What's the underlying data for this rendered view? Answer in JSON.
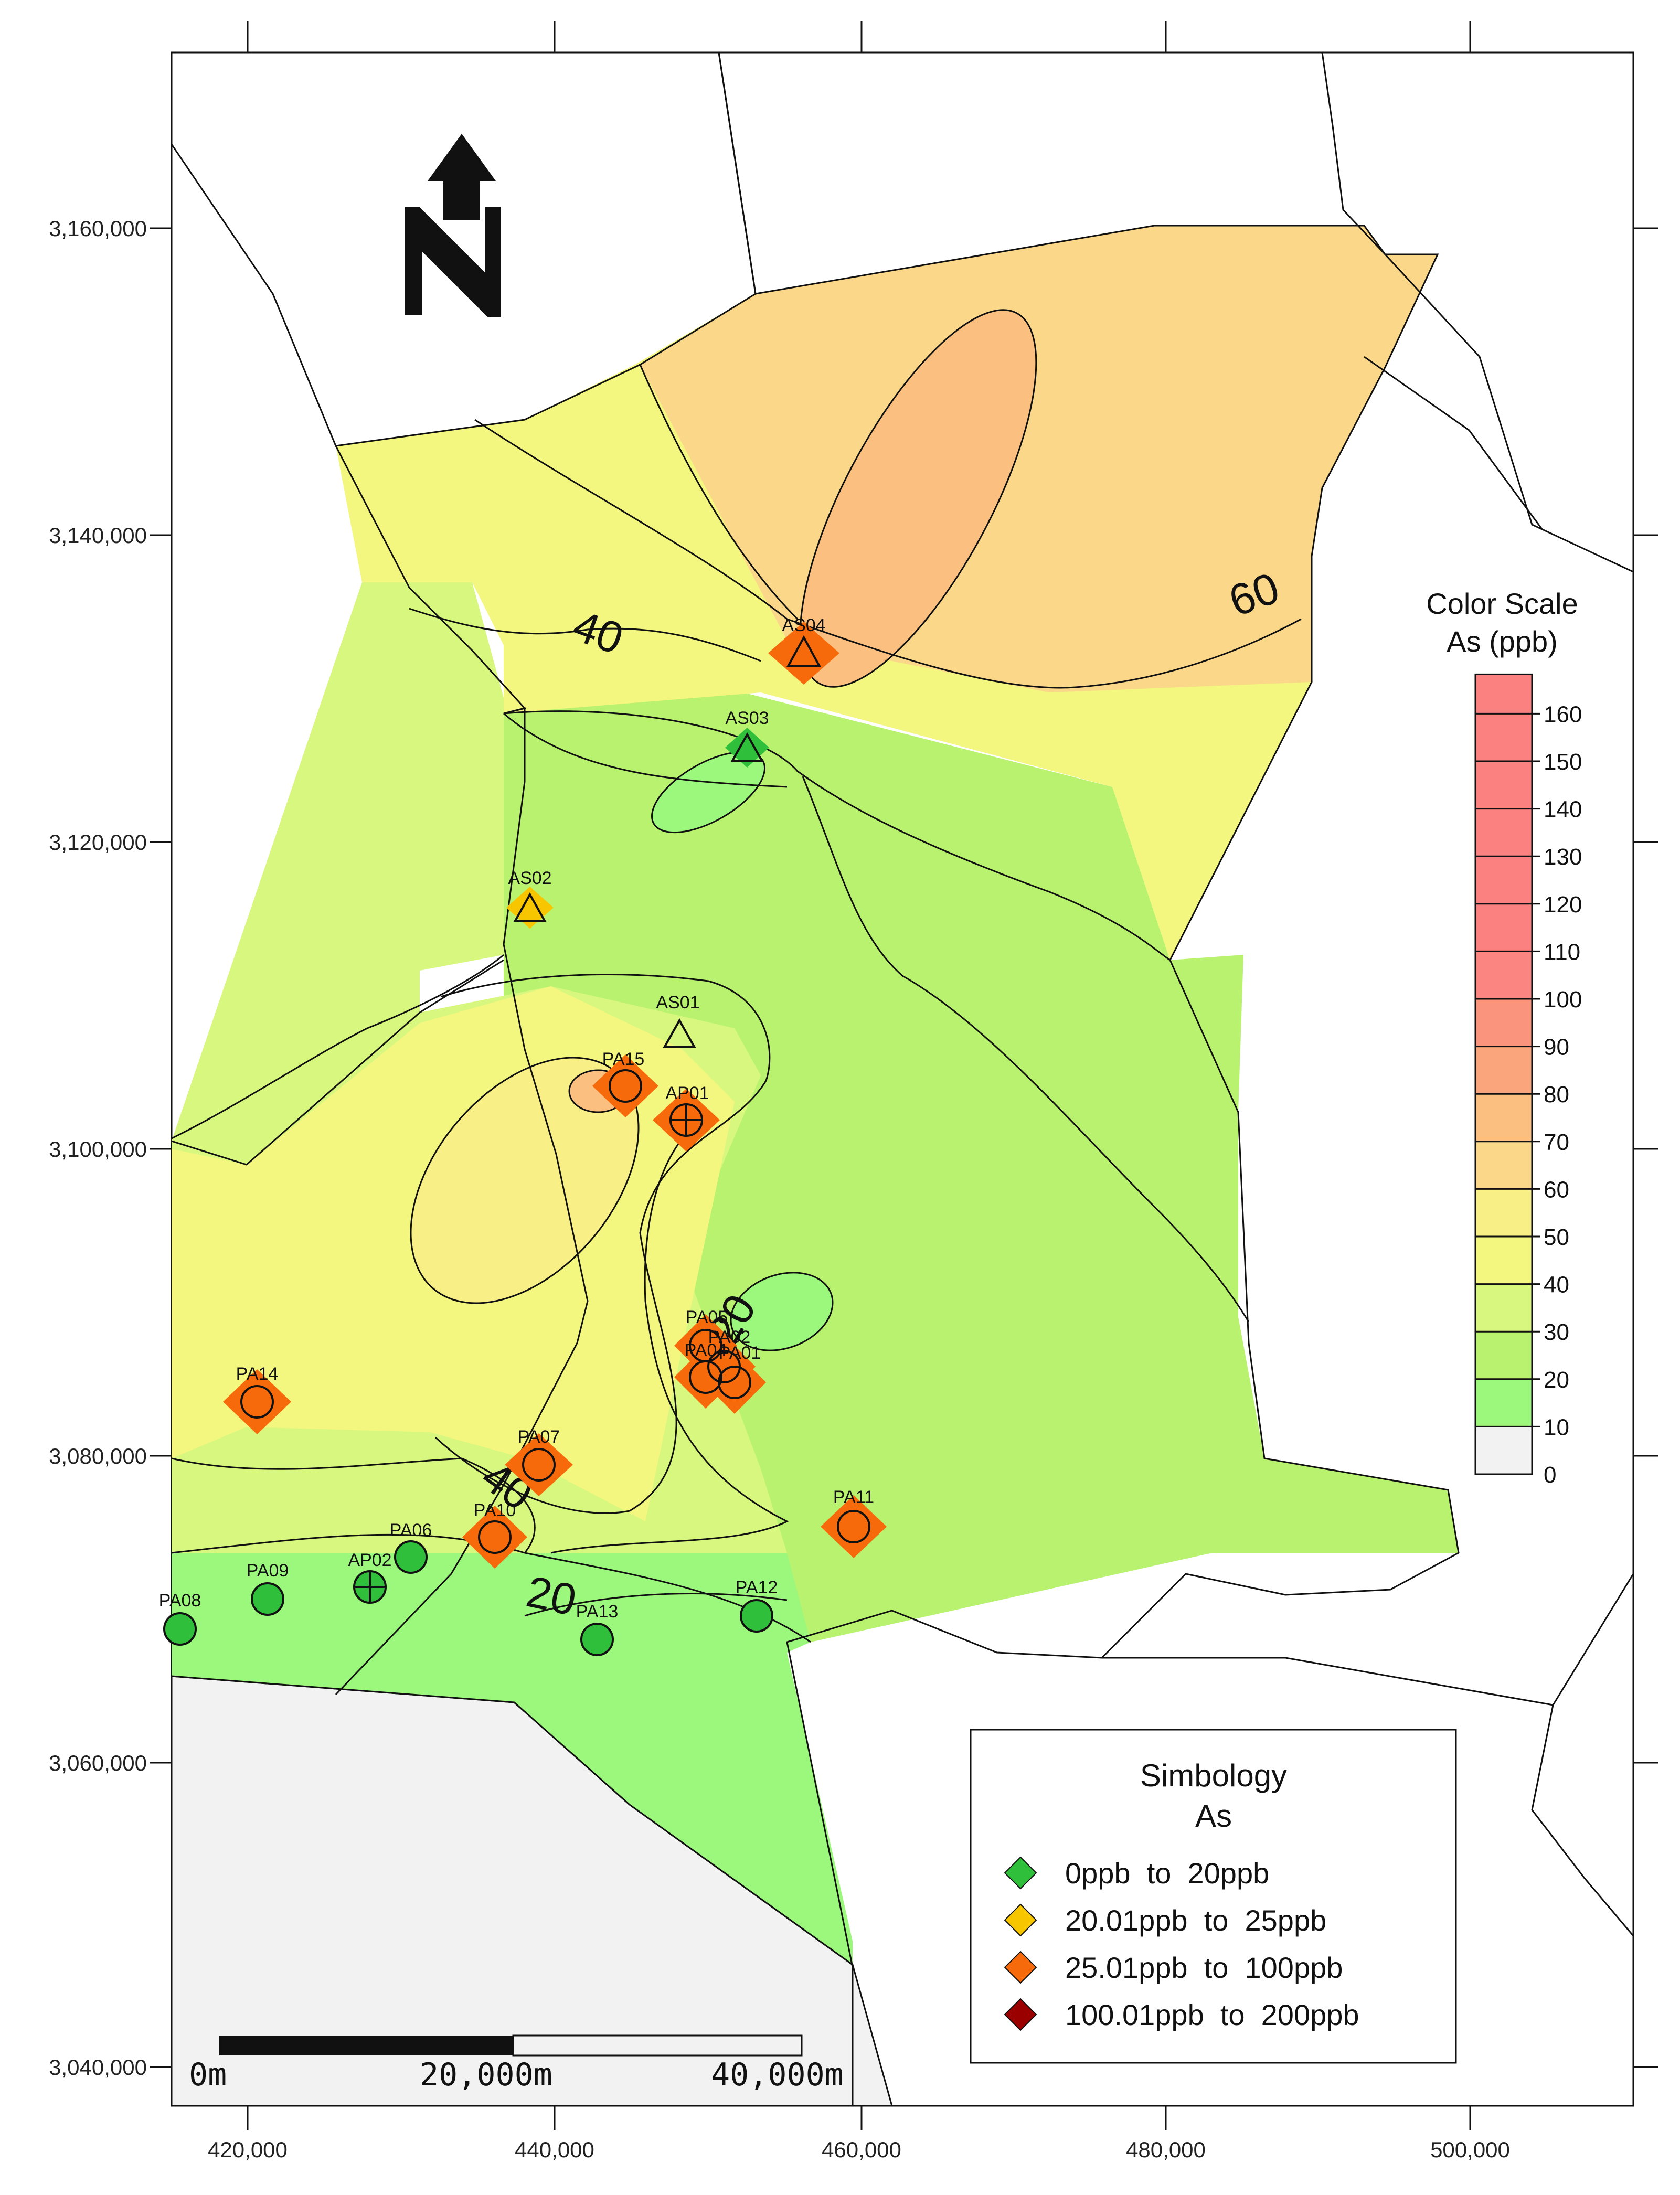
{
  "map": {
    "x_ticks": [
      "420,000",
      "440,000",
      "460,000",
      "480,000",
      "500,000"
    ],
    "y_ticks": [
      "3,160,000",
      "3,140,000",
      "3,120,000",
      "3,100,000",
      "3,080,000",
      "3,060,000",
      "3,040,000"
    ],
    "contour_labels": [
      "40",
      "60",
      "20",
      "40",
      "20"
    ],
    "stations": [
      "AS04",
      "AS03",
      "AS02",
      "AS01",
      "PA15",
      "AP01",
      "PA05",
      "PA02",
      "PA04",
      "PA01",
      "PA14",
      "PA07",
      "PA10",
      "PA11",
      "PA06",
      "AP02",
      "PA09",
      "PA08",
      "PA13",
      "PA12"
    ]
  },
  "scale_bar": {
    "labels": [
      "0m",
      "20,000m",
      "40,000m"
    ]
  },
  "color_scale": {
    "title_line1": "Color Scale",
    "title_line2": "As (ppb)",
    "levels": [
      "0",
      "10",
      "20",
      "30",
      "40",
      "50",
      "60",
      "70",
      "80",
      "90",
      "100",
      "110",
      "120",
      "130",
      "140",
      "150",
      "160"
    ],
    "colors": [
      "#f2f2f2",
      "#9cf87c",
      "#b9f26e",
      "#d8f77e",
      "#f3f77f",
      "#f8ef86",
      "#fbd78a",
      "#fbc07f",
      "#fba57d",
      "#fb947d",
      "#fb8580",
      "#fb8080",
      "#fb8080",
      "#fb8080",
      "#fb8080",
      "#fb8080",
      "#fb8080"
    ]
  },
  "legend": {
    "title_line1": "Simbology",
    "title_line2": "As",
    "items": [
      {
        "label": "0ppb  to  20ppb",
        "color": "#2fbf3a"
      },
      {
        "label": "20.01ppb  to  25ppb",
        "color": "#f7c600"
      },
      {
        "label": "25.01ppb  to  100ppb",
        "color": "#f66a0c"
      },
      {
        "label": "100.01ppb  to  200ppb",
        "color": "#9a0000"
      }
    ]
  }
}
